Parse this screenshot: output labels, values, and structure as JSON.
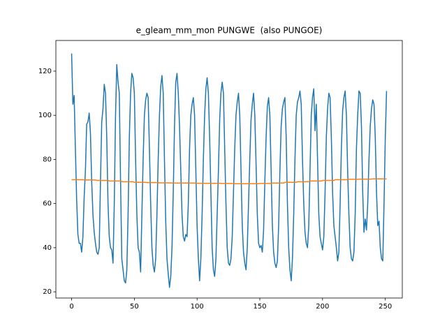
{
  "chart_data": {
    "type": "line",
    "title": "e_gleam_mm_mon PUNGWE  (also PUNGOE)",
    "x": [
      0,
      1,
      2,
      3,
      4,
      5,
      6,
      7,
      8,
      9,
      10,
      11,
      12,
      13,
      14,
      15,
      16,
      17,
      18,
      19,
      20,
      21,
      22,
      23,
      24,
      25,
      26,
      27,
      28,
      29,
      30,
      31,
      32,
      33,
      34,
      35,
      36,
      37,
      38,
      39,
      40,
      41,
      42,
      43,
      44,
      45,
      46,
      47,
      48,
      49,
      50,
      51,
      52,
      53,
      54,
      55,
      56,
      57,
      58,
      59,
      60,
      61,
      62,
      63,
      64,
      65,
      66,
      67,
      68,
      69,
      70,
      71,
      72,
      73,
      74,
      75,
      76,
      77,
      78,
      79,
      80,
      81,
      82,
      83,
      84,
      85,
      86,
      87,
      88,
      89,
      90,
      91,
      92,
      93,
      94,
      95,
      96,
      97,
      98,
      99,
      100,
      101,
      102,
      103,
      104,
      105,
      106,
      107,
      108,
      109,
      110,
      111,
      112,
      113,
      114,
      115,
      116,
      117,
      118,
      119,
      120,
      121,
      122,
      123,
      124,
      125,
      126,
      127,
      128,
      129,
      130,
      131,
      132,
      133,
      134,
      135,
      136,
      137,
      138,
      139,
      140,
      141,
      142,
      143,
      144,
      145,
      146,
      147,
      148,
      149,
      150,
      151,
      152,
      153,
      154,
      155,
      156,
      157,
      158,
      159,
      160,
      161,
      162,
      163,
      164,
      165,
      166,
      167,
      168,
      169,
      170,
      171,
      172,
      173,
      174,
      175,
      176,
      177,
      178,
      179,
      180,
      181,
      182,
      183,
      184,
      185,
      186,
      187,
      188,
      189,
      190,
      191,
      192,
      193,
      194,
      195,
      196,
      197,
      198,
      199,
      200,
      201,
      202,
      203,
      204,
      205,
      206,
      207,
      208,
      209,
      210,
      211,
      212,
      213,
      214,
      215,
      216,
      217,
      218,
      219,
      220,
      221,
      222,
      223,
      224,
      225,
      226,
      227,
      228,
      229,
      230,
      231,
      232,
      233,
      234,
      235,
      236,
      237,
      238,
      239,
      240,
      241,
      242,
      243,
      244,
      245,
      246,
      247,
      248,
      249,
      250,
      251
    ],
    "series": [
      {
        "color": "#1f77b4",
        "values": [
          128,
          105,
          109,
          85,
          62,
          46,
          42,
          42,
          38,
          45,
          63,
          75,
          96,
          97,
          101,
          92,
          70,
          55,
          47,
          42,
          38,
          37,
          40,
          70,
          97,
          103,
          114,
          110,
          90,
          60,
          45,
          40,
          39,
          33,
          60,
          100,
          123,
          115,
          110,
          70,
          35,
          30,
          25,
          24,
          30,
          55,
          90,
          110,
          119,
          117,
          110,
          80,
          55,
          40,
          38,
          29,
          55,
          80,
          100,
          107,
          110,
          108,
          85,
          60,
          40,
          32,
          29,
          35,
          55,
          80,
          100,
          113,
          118,
          110,
          80,
          52,
          35,
          28,
          22,
          27,
          40,
          65,
          95,
          115,
          119,
          110,
          95,
          75,
          55,
          45,
          43,
          46,
          45,
          60,
          85,
          100,
          105,
          108,
          100,
          75,
          50,
          35,
          25,
          35,
          55,
          80,
          100,
          112,
          117,
          110,
          90,
          65,
          40,
          30,
          27,
          35,
          55,
          75,
          98,
          110,
          115,
          110,
          85,
          60,
          40,
          33,
          32,
          35,
          45,
          65,
          85,
          100,
          106,
          110,
          100,
          75,
          50,
          38,
          33,
          30,
          40,
          60,
          80,
          98,
          105,
          110,
          100,
          78,
          55,
          42,
          40,
          41,
          38,
          48,
          70,
          90,
          104,
          108,
          100,
          75,
          50,
          38,
          33,
          31,
          34,
          50,
          75,
          95,
          103,
          106,
          108,
          90,
          60,
          40,
          30,
          25,
          35,
          55,
          80,
          100,
          106,
          108,
          111,
          105,
          80,
          60,
          47,
          42,
          40,
          50,
          75,
          100,
          108,
          112,
          93,
          105,
          80,
          55,
          45,
          42,
          39,
          45,
          65,
          90,
          103,
          110,
          108,
          90,
          65,
          50,
          45,
          40,
          34,
          38,
          60,
          85,
          102,
          108,
          111,
          100,
          75,
          55,
          40,
          35,
          34,
          38,
          55,
          85,
          100,
          111,
          110,
          95,
          65,
          47,
          53,
          48,
          60,
          80,
          95,
          103,
          107,
          105,
          90,
          65,
          50,
          52,
          40,
          35,
          34,
          60,
          90,
          111
        ]
      },
      {
        "color": "#ff7f0e",
        "values": [
          70.8,
          70.8,
          70.8,
          70.8,
          70.8,
          70.8,
          70.8,
          70.8,
          70.8,
          70.8,
          70.7,
          70.7,
          70.7,
          70.7,
          70.7,
          70.7,
          70.7,
          70.7,
          70.7,
          70.7,
          70.5,
          70.5,
          70.5,
          70.5,
          70.5,
          70.5,
          70.5,
          70.5,
          70.5,
          70.5,
          70.2,
          70.2,
          70.2,
          70.2,
          70.2,
          70.2,
          70.2,
          70.2,
          70.2,
          70.2,
          69.9,
          69.9,
          69.9,
          69.9,
          69.9,
          69.9,
          69.9,
          69.9,
          69.9,
          69.9,
          69.6,
          69.6,
          69.6,
          69.6,
          69.6,
          69.6,
          69.6,
          69.6,
          69.6,
          69.6,
          69.5,
          69.5,
          69.5,
          69.5,
          69.5,
          69.5,
          69.5,
          69.5,
          69.5,
          69.5,
          69.4,
          69.4,
          69.4,
          69.4,
          69.4,
          69.4,
          69.4,
          69.4,
          69.4,
          69.4,
          69.3,
          69.3,
          69.3,
          69.3,
          69.3,
          69.3,
          69.3,
          69.3,
          69.3,
          69.3,
          69.3,
          69.3,
          69.3,
          69.3,
          69.3,
          69.3,
          69.3,
          69.3,
          69.3,
          69.3,
          69.2,
          69.2,
          69.2,
          69.2,
          69.2,
          69.2,
          69.2,
          69.2,
          69.2,
          69.2,
          69.2,
          69.2,
          69.2,
          69.2,
          69.2,
          69.2,
          69.2,
          69.2,
          69.2,
          69.2,
          69.1,
          69.1,
          69.1,
          69.1,
          69.1,
          69.1,
          69.1,
          69.1,
          69.1,
          69.1,
          69.0,
          69.0,
          69.0,
          69.0,
          69.0,
          69.0,
          69.0,
          69.0,
          69.0,
          69.0,
          69.0,
          69.0,
          69.0,
          69.0,
          69.0,
          69.0,
          69.0,
          69.0,
          69.0,
          69.0,
          69.1,
          69.1,
          69.1,
          69.1,
          69.1,
          69.1,
          69.1,
          69.1,
          69.1,
          69.1,
          69.3,
          69.3,
          69.3,
          69.3,
          69.3,
          69.3,
          69.3,
          69.3,
          69.3,
          69.3,
          69.6,
          69.6,
          69.6,
          69.6,
          69.6,
          69.6,
          69.6,
          69.6,
          69.6,
          69.6,
          69.9,
          69.9,
          69.9,
          69.9,
          69.9,
          69.9,
          69.9,
          69.9,
          69.9,
          69.9,
          70.2,
          70.2,
          70.2,
          70.2,
          70.2,
          70.2,
          70.2,
          70.2,
          70.2,
          70.2,
          70.5,
          70.5,
          70.5,
          70.5,
          70.5,
          70.5,
          70.5,
          70.5,
          70.5,
          70.5,
          70.8,
          70.8,
          70.8,
          70.8,
          70.8,
          70.8,
          70.8,
          70.8,
          70.8,
          70.8,
          71.0,
          71.0,
          71.0,
          71.0,
          71.0,
          71.0,
          71.0,
          71.0,
          71.0,
          71.0,
          71.1,
          71.1,
          71.1,
          71.1,
          71.1,
          71.1,
          71.1,
          71.1,
          71.1,
          71.1,
          71.2,
          71.2,
          71.2,
          71.2,
          71.2,
          71.2,
          71.2,
          71.2,
          71.2,
          71.2,
          71.2,
          71.2
        ]
      }
    ],
    "xlim": [
      -12.55,
      263.55
    ],
    "xticks": [
      0,
      50,
      100,
      150,
      200,
      250
    ],
    "ylim": [
      17.2,
      133.9
    ],
    "yticks": [
      20,
      40,
      60,
      80,
      100,
      120
    ]
  }
}
